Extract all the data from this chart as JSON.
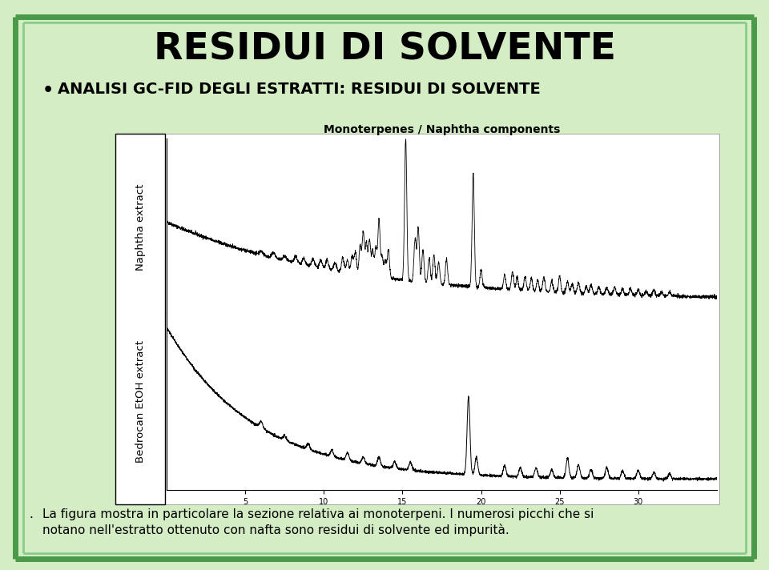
{
  "title": "RESIDUI DI SOLVENTE",
  "bullet_text": "ANALISI GC-FID DEGLI ESTRATTI: RESIDUI DI SOLVENTE",
  "chart_title": "Monoterpenes / Naphtha components",
  "ylabel_top": "Naphtha extract",
  "ylabel_bottom": "Bedrocan EtOH extract",
  "caption_line1": "La figura mostra in particolare la sezione relativa ai monoterpeni. I numerosi picchi che si",
  "caption_line2": "notano nell'estratto ottenuto con nafta sono residui di solvente ed impurità.",
  "bg_color": "#d4edc4",
  "chart_bg": "#ffffff",
  "text_color": "#000000",
  "title_color": "#000000",
  "border_color": "#4a9a4a",
  "border_dark": "#2a6a2a",
  "green_sq_color": "#22aa22",
  "caption_fontsize": 11,
  "title_fontsize": 34,
  "bullet_fontsize": 14
}
